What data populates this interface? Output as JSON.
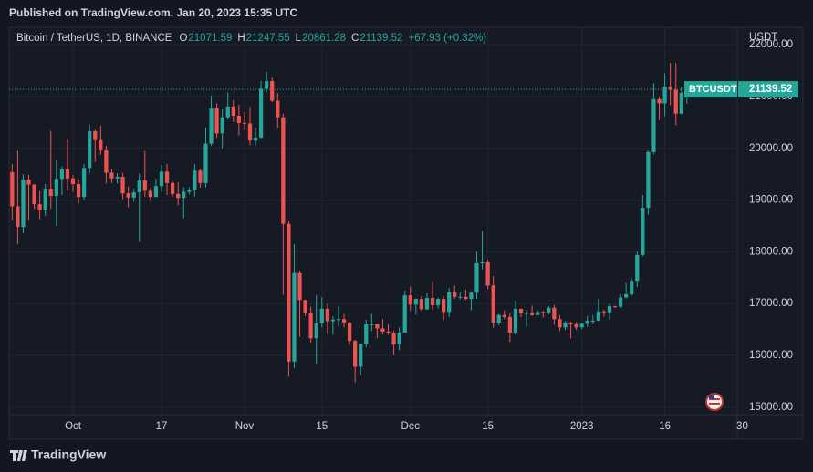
{
  "header": "Published on TradingView.com, Jan 20, 2023 15:35 UTC",
  "footer": "TradingView",
  "chart_data": {
    "type": "candlestick",
    "title": "Bitcoin / TetherUS, 1D, BINANCE",
    "ohlc_letters": [
      "O",
      "H",
      "L",
      "C"
    ],
    "change": "+67.93 (+0.32%)",
    "symbol": "BTCUSDT",
    "y_unit": "USDT",
    "up_color": "#26a69a",
    "down_color": "#ef5350",
    "grid": true,
    "xlim": [
      -0.55,
      131.1
    ],
    "xticks": [
      {
        "value": 11,
        "label": "Oct"
      },
      {
        "value": 27,
        "label": "17"
      },
      {
        "value": 42,
        "label": "Nov"
      },
      {
        "value": 56,
        "label": "15"
      },
      {
        "value": 72,
        "label": "Dec"
      },
      {
        "value": 86,
        "label": "15"
      },
      {
        "value": 103,
        "label": "2023"
      },
      {
        "value": 118,
        "label": "16"
      },
      {
        "value": 132,
        "label": "30"
      }
    ],
    "ylim": [
      14856,
      22338
    ],
    "yticks": [
      {
        "value": 15000,
        "label": "15000.00"
      },
      {
        "value": 16000,
        "label": "16000.00"
      },
      {
        "value": 17000,
        "label": "17000.00"
      },
      {
        "value": 18000,
        "label": "18000.00"
      },
      {
        "value": 19000,
        "label": "19000.00"
      },
      {
        "value": 20000,
        "label": "20000.00"
      },
      {
        "value": 21000,
        "label": "21000.00"
      },
      {
        "value": 22000,
        "label": "22000.00"
      }
    ],
    "open": [
      19540,
      18880,
      18480,
      19400,
      19300,
      18920,
      18800,
      19220,
      19080,
      19410,
      19590,
      19420,
      19310,
      19060,
      19620,
      20330,
      20160,
      19960,
      19530,
      19420,
      19450,
      19130,
      19050,
      19150,
      19380,
      19180,
      19060,
      19270,
      19550,
      19330,
      19120,
      19040,
      19160,
      19200,
      19570,
      19330,
      20090,
      20770,
      20290,
      20600,
      20810,
      20630,
      20490,
      20480,
      20150,
      20210,
      21150,
      21300,
      20920,
      20600,
      18540,
      15880,
      17590,
      17070,
      16810,
      16330,
      16620,
      16900,
      16660,
      16690,
      16700,
      16630,
      16280,
      15780,
      16220,
      16600,
      16600,
      16520,
      16460,
      16430,
      16210,
      16440,
      17160,
      16980,
      17090,
      16890,
      17110,
      16970,
      17090,
      16840,
      17220,
      17130,
      17130,
      17090,
      17210,
      17780,
      17800,
      17350,
      16630,
      16780,
      16740,
      16440,
      16900,
      16820,
      16820,
      16780,
      16840,
      16830,
      16920,
      16700,
      16540,
      16630,
      16600,
      16540,
      16610,
      16670,
      16670,
      16850,
      16830,
      16950,
      16940,
      17120,
      17180,
      17440,
      17940,
      18850,
      19930,
      20950,
      20870,
      21190,
      21130,
      20670,
      21071.59
    ],
    "high": [
      19700,
      19950,
      19500,
      19490,
      19310,
      19180,
      19310,
      20340,
      19770,
      19650,
      20180,
      19480,
      19400,
      19700,
      20460,
      20360,
      20440,
      20050,
      19600,
      19520,
      19530,
      19260,
      19220,
      19510,
      19950,
      19230,
      19410,
      19680,
      19700,
      19360,
      19350,
      19250,
      19250,
      19700,
      19600,
      20400,
      21020,
      20870,
      20750,
      21080,
      20930,
      20840,
      20700,
      20800,
      20400,
      21300,
      21480,
      21370,
      21070,
      20670,
      18600,
      18150,
      17640,
      17070,
      16940,
      17170,
      17120,
      17000,
      16750,
      16950,
      16800,
      16650,
      16300,
      16230,
      16690,
      16800,
      16600,
      16700,
      16600,
      16480,
      16540,
      17250,
      17330,
      17100,
      17150,
      17200,
      17420,
      17110,
      17140,
      17300,
      17350,
      17230,
      17270,
      17240,
      18000,
      18400,
      17850,
      17530,
      16800,
      16870,
      16820,
      17060,
      16900,
      16870,
      16960,
      16870,
      16860,
      16950,
      16970,
      16780,
      16660,
      16650,
      16640,
      16620,
      16760,
      16780,
      17090,
      16880,
      17000,
      16960,
      17180,
      17400,
      17490,
      18000,
      19100,
      19960,
      21260,
      21000,
      21450,
      21650,
      21650,
      21180,
      21247.55
    ],
    "low": [
      18620,
      18150,
      18360,
      18620,
      18830,
      18630,
      18690,
      18830,
      18500,
      19100,
      19180,
      19160,
      18930,
      19000,
      19520,
      19740,
      19880,
      19320,
      19330,
      19320,
      19020,
      18860,
      18970,
      18190,
      19070,
      18980,
      19060,
      19160,
      19100,
      19070,
      18900,
      18650,
      19110,
      19070,
      19240,
      19250,
      20050,
      20200,
      20000,
      20560,
      20510,
      20250,
      20350,
      20060,
      20050,
      20180,
      21080,
      20890,
      20390,
      17170,
      15590,
      15750,
      16360,
      16760,
      16250,
      15820,
      16540,
      16420,
      16400,
      16560,
      16540,
      16200,
      15480,
      15620,
      16160,
      16470,
      16330,
      16400,
      16400,
      16000,
      16100,
      16440,
      16860,
      16790,
      16860,
      16880,
      16880,
      16910,
      16680,
      16740,
      17090,
      17080,
      17070,
      16870,
      17090,
      17660,
      17280,
      16530,
      16580,
      16700,
      16260,
      16400,
      16740,
      16560,
      16760,
      16780,
      16730,
      16790,
      16590,
      16470,
      16490,
      16330,
      16490,
      16500,
      16550,
      16600,
      16660,
      16750,
      16680,
      16910,
      16910,
      17100,
      17150,
      17320,
      17910,
      18720,
      19890,
      20550,
      20620,
      20830,
      20450,
      20660,
      20861.28
    ],
    "close": [
      18880,
      18480,
      19400,
      19300,
      18920,
      18800,
      19220,
      19080,
      19410,
      19590,
      19420,
      19310,
      19060,
      19620,
      20330,
      20160,
      19960,
      19530,
      19420,
      19450,
      19130,
      19050,
      19150,
      19380,
      19180,
      19060,
      19270,
      19550,
      19330,
      19120,
      19040,
      19160,
      19200,
      19570,
      19330,
      20090,
      20770,
      20290,
      20600,
      20810,
      20630,
      20490,
      20480,
      20150,
      20210,
      21150,
      21300,
      20920,
      20600,
      18540,
      15880,
      17590,
      17070,
      16810,
      16330,
      16620,
      16900,
      16660,
      16690,
      16700,
      16630,
      16280,
      15780,
      16220,
      16600,
      16600,
      16520,
      16460,
      16430,
      16210,
      16440,
      17160,
      16980,
      17090,
      16890,
      17110,
      16970,
      17090,
      16840,
      17220,
      17130,
      17130,
      17090,
      17210,
      17780,
      17800,
      17350,
      16630,
      16780,
      16740,
      16440,
      16900,
      16820,
      16820,
      16780,
      16840,
      16830,
      16920,
      16700,
      16540,
      16630,
      16600,
      16540,
      16610,
      16670,
      16670,
      16850,
      16830,
      16950,
      16940,
      17120,
      17180,
      17440,
      17940,
      18850,
      19930,
      20950,
      20870,
      21190,
      21130,
      20670,
      21071.59,
      21139.52
    ]
  }
}
